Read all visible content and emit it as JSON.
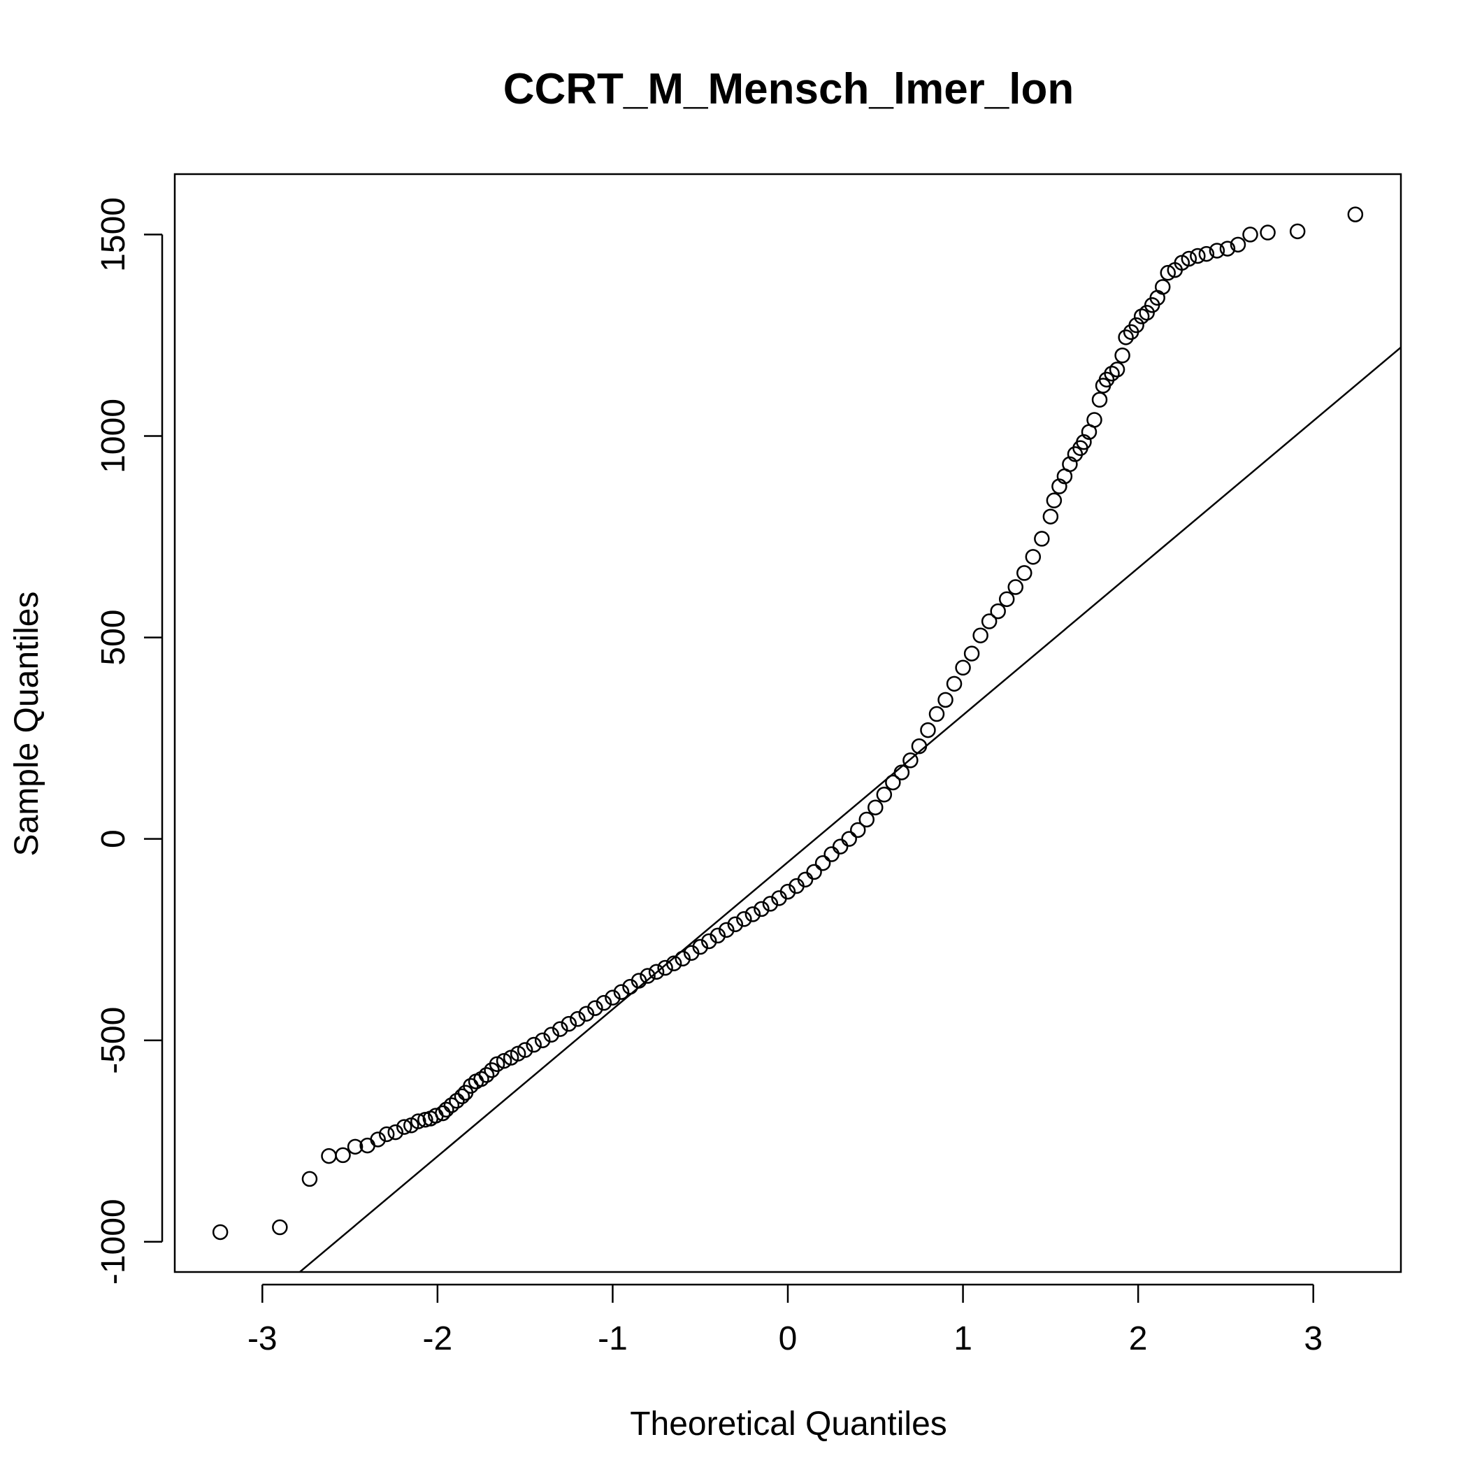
{
  "chart_data": {
    "type": "scatter",
    "title": "CCRT_M_Mensch_lmer_lon",
    "xlabel": "Theoretical Quantiles",
    "ylabel": "Sample Quantiles",
    "xlim": [
      -3.5,
      3.5
    ],
    "ylim": [
      -1075,
      1650
    ],
    "xticks": [
      -3,
      -2,
      -1,
      0,
      1,
      2,
      3
    ],
    "xtick_labels": [
      "-3",
      "-2",
      "-1",
      "0",
      "1",
      "2",
      "3"
    ],
    "yticks": [
      -1000,
      -500,
      0,
      500,
      1000,
      1500
    ],
    "ytick_labels": [
      "-1000",
      "-500",
      "0",
      "500",
      "1000",
      "1500"
    ],
    "grid": false,
    "legend": "none",
    "marker": "open-circle",
    "colors": {
      "points": "#000000",
      "line": "#000000",
      "frame": "#000000"
    },
    "reference_line": {
      "type": "qqline",
      "points": [
        [
          -2.8,
          -1080
        ],
        [
          3.5,
          1220
        ]
      ]
    },
    "series": [
      {
        "values": [
          [
            -3.24,
            -976
          ],
          [
            -2.9,
            -964
          ],
          [
            -2.73,
            -844
          ],
          [
            -2.62,
            -787
          ],
          [
            -2.54,
            -785
          ],
          [
            -2.47,
            -764
          ],
          [
            -2.4,
            -761
          ],
          [
            -2.34,
            -746
          ],
          [
            -2.29,
            -733
          ],
          [
            -2.24,
            -728
          ],
          [
            -2.19,
            -715
          ],
          [
            -2.15,
            -711
          ],
          [
            -2.11,
            -701
          ],
          [
            -2.07,
            -697
          ],
          [
            -2.04,
            -694
          ],
          [
            -2.01,
            -687
          ],
          [
            -1.97,
            -681
          ],
          [
            -1.95,
            -672
          ],
          [
            -1.92,
            -661
          ],
          [
            -1.89,
            -650
          ],
          [
            -1.86,
            -639
          ],
          [
            -1.84,
            -630
          ],
          [
            -1.81,
            -613
          ],
          [
            -1.78,
            -602
          ],
          [
            -1.75,
            -596
          ],
          [
            -1.72,
            -586
          ],
          [
            -1.69,
            -574
          ],
          [
            -1.66,
            -559
          ],
          [
            -1.62,
            -551
          ],
          [
            -1.58,
            -543
          ],
          [
            -1.54,
            -533
          ],
          [
            -1.5,
            -524
          ],
          [
            -1.45,
            -511
          ],
          [
            -1.4,
            -500
          ],
          [
            -1.35,
            -486
          ],
          [
            -1.3,
            -472
          ],
          [
            -1.25,
            -459
          ],
          [
            -1.2,
            -447
          ],
          [
            -1.15,
            -434
          ],
          [
            -1.1,
            -420
          ],
          [
            -1.05,
            -407
          ],
          [
            -1.0,
            -394
          ],
          [
            -0.95,
            -380
          ],
          [
            -0.9,
            -367
          ],
          [
            -0.85,
            -352
          ],
          [
            -0.8,
            -340
          ],
          [
            -0.75,
            -330
          ],
          [
            -0.7,
            -320
          ],
          [
            -0.65,
            -309
          ],
          [
            -0.6,
            -297
          ],
          [
            -0.55,
            -283
          ],
          [
            -0.5,
            -268
          ],
          [
            -0.45,
            -254
          ],
          [
            -0.4,
            -240
          ],
          [
            -0.35,
            -226
          ],
          [
            -0.3,
            -212
          ],
          [
            -0.25,
            -199
          ],
          [
            -0.2,
            -187
          ],
          [
            -0.15,
            -174
          ],
          [
            -0.1,
            -161
          ],
          [
            -0.05,
            -147
          ],
          [
            0.0,
            -131
          ],
          [
            0.05,
            -117
          ],
          [
            0.1,
            -101
          ],
          [
            0.15,
            -82
          ],
          [
            0.2,
            -60
          ],
          [
            0.25,
            -38
          ],
          [
            0.3,
            -19
          ],
          [
            0.35,
            0
          ],
          [
            0.4,
            22
          ],
          [
            0.45,
            48
          ],
          [
            0.5,
            78
          ],
          [
            0.55,
            110
          ],
          [
            0.6,
            140
          ],
          [
            0.65,
            165
          ],
          [
            0.7,
            195
          ],
          [
            0.75,
            230
          ],
          [
            0.8,
            270
          ],
          [
            0.85,
            310
          ],
          [
            0.9,
            345
          ],
          [
            0.95,
            385
          ],
          [
            1.0,
            425
          ],
          [
            1.05,
            460
          ],
          [
            1.1,
            505
          ],
          [
            1.15,
            540
          ],
          [
            1.2,
            565
          ],
          [
            1.25,
            595
          ],
          [
            1.3,
            625
          ],
          [
            1.35,
            660
          ],
          [
            1.4,
            700
          ],
          [
            1.45,
            745
          ],
          [
            1.5,
            800
          ],
          [
            1.52,
            840
          ],
          [
            1.55,
            875
          ],
          [
            1.58,
            900
          ],
          [
            1.61,
            930
          ],
          [
            1.64,
            955
          ],
          [
            1.67,
            970
          ],
          [
            1.69,
            985
          ],
          [
            1.72,
            1010
          ],
          [
            1.75,
            1040
          ],
          [
            1.78,
            1090
          ],
          [
            1.8,
            1125
          ],
          [
            1.82,
            1140
          ],
          [
            1.85,
            1155
          ],
          [
            1.88,
            1165
          ],
          [
            1.91,
            1200
          ],
          [
            1.93,
            1245
          ],
          [
            1.96,
            1258
          ],
          [
            1.99,
            1275
          ],
          [
            2.02,
            1297
          ],
          [
            2.05,
            1306
          ],
          [
            2.08,
            1325
          ],
          [
            2.11,
            1343
          ],
          [
            2.14,
            1370
          ],
          [
            2.17,
            1405
          ],
          [
            2.21,
            1412
          ],
          [
            2.25,
            1430
          ],
          [
            2.29,
            1440
          ],
          [
            2.34,
            1447
          ],
          [
            2.39,
            1452
          ],
          [
            2.45,
            1460
          ],
          [
            2.51,
            1465
          ],
          [
            2.57,
            1475
          ],
          [
            2.64,
            1500
          ],
          [
            2.74,
            1505
          ],
          [
            2.91,
            1508
          ],
          [
            3.24,
            1550
          ]
        ]
      }
    ]
  }
}
